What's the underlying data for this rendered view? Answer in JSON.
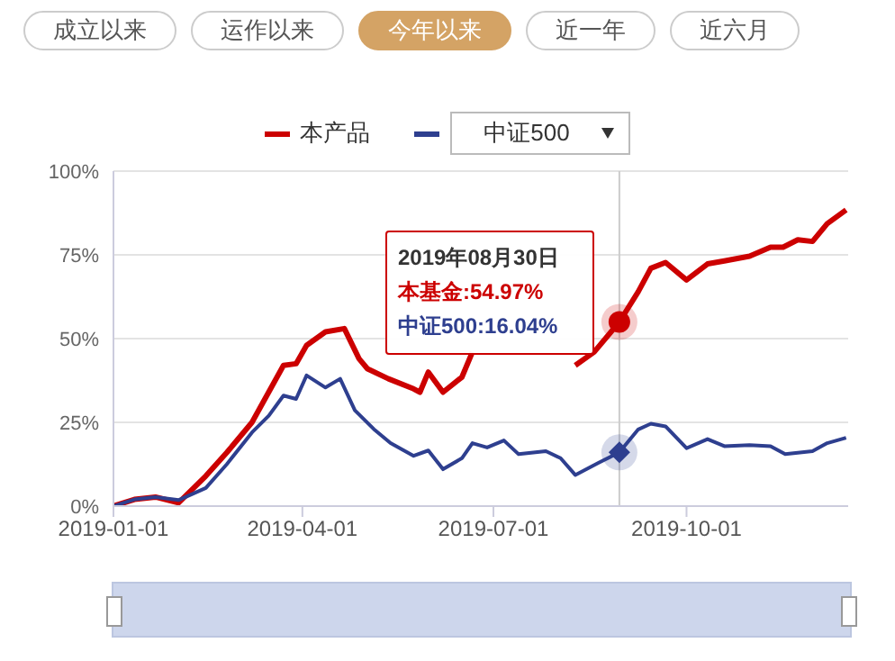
{
  "chart_data": {
    "type": "line",
    "x": [
      "2019-01-01",
      "2019-01-11",
      "2019-01-21",
      "2019-02-01",
      "2019-02-14",
      "2019-02-24",
      "2019-03-08",
      "2019-03-23",
      "2019-03-29",
      "2019-04-03",
      "2019-04-12",
      "2019-04-21",
      "2019-04-28",
      "2019-05-02",
      "2019-05-12",
      "2019-05-24",
      "2019-05-27",
      "2019-05-31",
      "2019-06-07",
      "2019-06-16",
      "2019-06-21",
      "2019-07-15",
      "2019-08-09",
      "2019-08-18",
      "2019-08-30",
      "2019-09-08",
      "2019-09-14",
      "2019-09-21",
      "2019-10-01",
      "2019-10-11",
      "2019-10-19",
      "2019-10-31",
      "2019-11-10",
      "2019-11-16",
      "2019-11-23",
      "2019-11-30",
      "2019-12-07",
      "2019-12-16"
    ],
    "series": [
      {
        "name": "本产品",
        "color": "#cc0000",
        "values": [
          0,
          2,
          2.7,
          1,
          9,
          16,
          25,
          42,
          42.5,
          48,
          52,
          53,
          44,
          41,
          38,
          35,
          34,
          40,
          34,
          38.5,
          46,
          null,
          42,
          46,
          54.97,
          64,
          71,
          72.7,
          67.5,
          72.3,
          73.2,
          74.6,
          77.3,
          77.3,
          79.5,
          79,
          84.3,
          88.4
        ]
      },
      {
        "name": "中证500",
        "color": "#2e3f8f",
        "x": [
          "2019-01-01",
          "2019-01-11",
          "2019-01-21",
          "2019-02-01",
          "2019-02-14",
          "2019-02-24",
          "2019-03-08",
          "2019-03-16",
          "2019-03-23",
          "2019-03-29",
          "2019-04-03",
          "2019-04-12",
          "2019-04-19",
          "2019-04-26",
          "2019-05-05",
          "2019-05-13",
          "2019-05-24",
          "2019-05-31",
          "2019-06-07",
          "2019-06-16",
          "2019-06-21",
          "2019-06-28",
          "2019-07-06",
          "2019-07-13",
          "2019-07-26",
          "2019-08-02",
          "2019-08-09",
          "2019-08-20",
          "2019-08-30",
          "2019-09-08",
          "2019-09-14",
          "2019-09-21",
          "2019-10-01",
          "2019-10-11",
          "2019-10-19",
          "2019-10-31",
          "2019-11-10",
          "2019-11-17",
          "2019-11-30",
          "2019-12-07",
          "2019-12-16"
        ],
        "values": [
          0,
          2,
          2.7,
          1.8,
          5.4,
          12.5,
          22,
          27,
          33,
          32,
          39,
          35.4,
          38,
          28.6,
          23,
          18.8,
          15,
          16.6,
          11,
          14.3,
          18.8,
          17.5,
          19.6,
          15.5,
          16.4,
          14.3,
          9.3,
          12.9,
          16.04,
          22.9,
          24.6,
          23.8,
          17.3,
          20,
          17.9,
          18.2,
          17.9,
          15.5,
          16.4,
          18.8,
          20.4
        ]
      }
    ],
    "xlim": [
      "2019-01-01",
      "2019-12-17"
    ],
    "xticks": [
      "2019-01-01",
      "2019-04-01",
      "2019-07-01",
      "2019-10-01"
    ],
    "ylim": [
      0,
      100
    ],
    "yticks": [
      {
        "value": 0,
        "label": "0%"
      },
      {
        "value": 25,
        "label": "25%"
      },
      {
        "value": 50,
        "label": "50%"
      },
      {
        "value": 75,
        "label": "75%"
      },
      {
        "value": 100,
        "label": "100%"
      }
    ],
    "grid": "y",
    "legend": "top",
    "marker": "none",
    "line_style": "solid",
    "ref_lines": [
      {
        "axis": "x",
        "value": "2019-08-30",
        "label": null,
        "color": "#cccccc"
      }
    ],
    "annotations": [
      "成立以来",
      "运作以来",
      "今年以来",
      "近一年",
      "近六月",
      "2019年08月30日",
      "本基金:54.97%",
      "中证500:16.04%"
    ]
  }
}
